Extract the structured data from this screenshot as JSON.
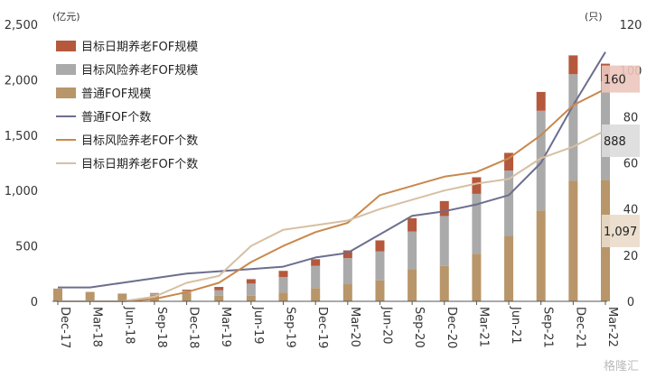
{
  "chart_data": {
    "type": "bar",
    "categories": [
      "Dec-17",
      "Mar-18",
      "Jun-18",
      "Sep-18",
      "Dec-18",
      "Mar-19",
      "Jun-19",
      "Sep-19",
      "Dec-19",
      "Mar-20",
      "Jun-20",
      "Sep-20",
      "Dec-20",
      "Mar-21",
      "Jun-21",
      "Sep-21",
      "Dec-21",
      "Mar-22"
    ],
    "left_unit": "(亿元)",
    "right_unit": "(只)",
    "y_left_range": [
      0,
      2500
    ],
    "y_left_ticks": [
      "0",
      "500",
      "1,000",
      "1,500",
      "2,000",
      "2,500"
    ],
    "y_right_range": [
      0,
      120
    ],
    "y_right_ticks": [
      "0",
      "20",
      "40",
      "60",
      "80",
      "100",
      "120"
    ],
    "bar_series": [
      {
        "name": "普通FOF规模",
        "color": "#b8966a",
        "values": [
          115,
          85,
          70,
          60,
          80,
          50,
          50,
          80,
          120,
          160,
          190,
          290,
          320,
          430,
          590,
          820,
          1090,
          1097
        ]
      },
      {
        "name": "目标风险养老FOF规模",
        "color": "#aaaaaa",
        "values": [
          0,
          0,
          0,
          10,
          15,
          50,
          110,
          140,
          200,
          230,
          260,
          340,
          450,
          540,
          590,
          900,
          960,
          888
        ]
      },
      {
        "name": "目标日期养老FOF规模",
        "color": "#b5583c",
        "values": [
          0,
          0,
          0,
          5,
          10,
          30,
          40,
          55,
          60,
          70,
          100,
          120,
          135,
          150,
          160,
          170,
          170,
          160
        ]
      }
    ],
    "line_series": [
      {
        "name": "普通FOF个数",
        "color": "#6c6e8e",
        "values": [
          6,
          6,
          8,
          10,
          12,
          13,
          14,
          15,
          19,
          21,
          29,
          37,
          39,
          42,
          46,
          60,
          85,
          108
        ]
      },
      {
        "name": "目标风险养老FOF个数",
        "color": "#c8884d",
        "values": [
          0,
          0,
          0,
          1,
          4,
          8,
          17,
          24,
          30,
          34,
          46,
          50,
          54,
          56,
          62,
          72,
          85,
          92
        ]
      },
      {
        "name": "目标日期养老FOF个数",
        "color": "#d6c0a3",
        "values": [
          0,
          0,
          0,
          2,
          8,
          11,
          24,
          31,
          33,
          35,
          40,
          44,
          48,
          51,
          53,
          62,
          67,
          74
        ]
      }
    ],
    "legend": [
      {
        "label": "目标日期养老FOF规模",
        "kind": "bar",
        "color": "#b5583c"
      },
      {
        "label": "目标风险养老FOF规模",
        "kind": "bar",
        "color": "#aaaaaa"
      },
      {
        "label": "普通FOF规模",
        "kind": "bar",
        "color": "#b8966a"
      },
      {
        "label": "普通FOF个数",
        "kind": "line",
        "color": "#6c6e8e"
      },
      {
        "label": "目标风险养老FOF个数",
        "kind": "line",
        "color": "#c8884d"
      },
      {
        "label": "目标日期养老FOF个数",
        "kind": "line",
        "color": "#d6c0a3"
      }
    ],
    "legend_position": "top-left",
    "grid": false,
    "annotations": [
      {
        "text": "160",
        "value": 160,
        "bg": "#ecc6bd"
      },
      {
        "text": "888",
        "value": 888,
        "bg": "#dcdcdc"
      },
      {
        "text": "1,097",
        "value": 1097,
        "bg": "#eadcca"
      }
    ]
  },
  "watermark": "格隆汇"
}
